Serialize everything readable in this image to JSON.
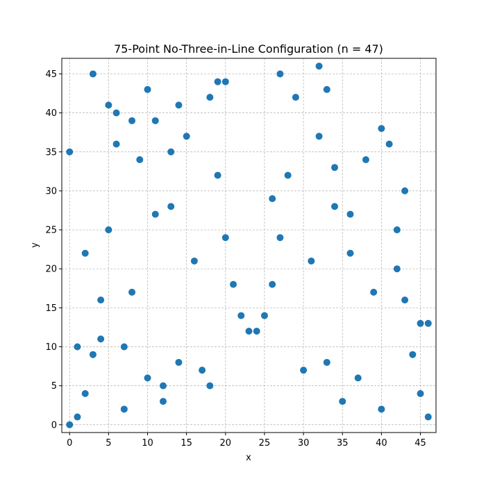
{
  "chart_data": {
    "type": "scatter",
    "title": "75-Point No-Three-in-Line Configuration (n = 47)",
    "xlabel": "x",
    "ylabel": "y",
    "xlim": [
      -1,
      47
    ],
    "ylim": [
      -1,
      47
    ],
    "xticks": [
      0,
      5,
      10,
      15,
      20,
      25,
      30,
      35,
      40,
      45
    ],
    "yticks": [
      0,
      5,
      10,
      15,
      20,
      25,
      30,
      35,
      40,
      45
    ],
    "grid": true,
    "marker_color": "#1f77b4",
    "points": [
      [
        0,
        0
      ],
      [
        0,
        35
      ],
      [
        1,
        1
      ],
      [
        1,
        10
      ],
      [
        2,
        4
      ],
      [
        2,
        22
      ],
      [
        3,
        9
      ],
      [
        3,
        45
      ],
      [
        4,
        11
      ],
      [
        4,
        16
      ],
      [
        5,
        25
      ],
      [
        5,
        41
      ],
      [
        6,
        36
      ],
      [
        6,
        40
      ],
      [
        7,
        2
      ],
      [
        7,
        10
      ],
      [
        8,
        17
      ],
      [
        8,
        39
      ],
      [
        9,
        34
      ],
      [
        10,
        6
      ],
      [
        10,
        43
      ],
      [
        11,
        27
      ],
      [
        11,
        39
      ],
      [
        12,
        3
      ],
      [
        12,
        5
      ],
      [
        13,
        28
      ],
      [
        13,
        35
      ],
      [
        14,
        8
      ],
      [
        14,
        41
      ],
      [
        15,
        37
      ],
      [
        16,
        21
      ],
      [
        17,
        7
      ],
      [
        18,
        5
      ],
      [
        18,
        42
      ],
      [
        19,
        32
      ],
      [
        19,
        44
      ],
      [
        20,
        24
      ],
      [
        20,
        44
      ],
      [
        21,
        18
      ],
      [
        22,
        14
      ],
      [
        23,
        12
      ],
      [
        24,
        12
      ],
      [
        25,
        14
      ],
      [
        26,
        18
      ],
      [
        26,
        29
      ],
      [
        27,
        24
      ],
      [
        27,
        45
      ],
      [
        28,
        32
      ],
      [
        29,
        42
      ],
      [
        30,
        7
      ],
      [
        31,
        21
      ],
      [
        32,
        37
      ],
      [
        32,
        46
      ],
      [
        33,
        8
      ],
      [
        33,
        43
      ],
      [
        34,
        28
      ],
      [
        34,
        33
      ],
      [
        35,
        3
      ],
      [
        36,
        22
      ],
      [
        36,
        27
      ],
      [
        37,
        6
      ],
      [
        38,
        34
      ],
      [
        39,
        17
      ],
      [
        40,
        2
      ],
      [
        40,
        38
      ],
      [
        41,
        36
      ],
      [
        42,
        20
      ],
      [
        42,
        25
      ],
      [
        43,
        16
      ],
      [
        43,
        30
      ],
      [
        44,
        9
      ],
      [
        45,
        4
      ],
      [
        45,
        13
      ],
      [
        46,
        1
      ],
      [
        46,
        13
      ]
    ]
  }
}
